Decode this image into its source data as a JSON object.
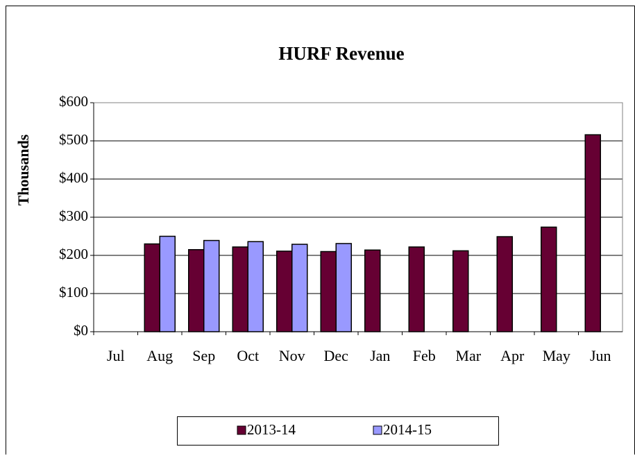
{
  "chart_data": {
    "type": "bar",
    "title": "HURF Revenue",
    "y_label": "Thousands",
    "categories": [
      "Jul",
      "Aug",
      "Sep",
      "Oct",
      "Nov",
      "Dec",
      "Jan",
      "Feb",
      "Mar",
      "Apr",
      "May",
      "Jun"
    ],
    "series": [
      {
        "name": "2013-14",
        "color": "#660033",
        "values": [
          null,
          230,
          215,
          222,
          211,
          210,
          214,
          222,
          212,
          249,
          274,
          516
        ]
      },
      {
        "name": "2014-15",
        "color": "#9999ff",
        "values": [
          null,
          250,
          239,
          236,
          229,
          231,
          null,
          null,
          null,
          null,
          null,
          null
        ]
      }
    ],
    "ylim": [
      0,
      600
    ],
    "yticks": [
      {
        "value": 0,
        "label": "$0"
      },
      {
        "value": 100,
        "label": "$100"
      },
      {
        "value": 200,
        "label": "$200"
      },
      {
        "value": 300,
        "label": "$300"
      },
      {
        "value": 400,
        "label": "$400"
      },
      {
        "value": 500,
        "label": "$500"
      },
      {
        "value": 600,
        "label": "$600"
      }
    ],
    "grid": true,
    "legend": "bottom"
  }
}
